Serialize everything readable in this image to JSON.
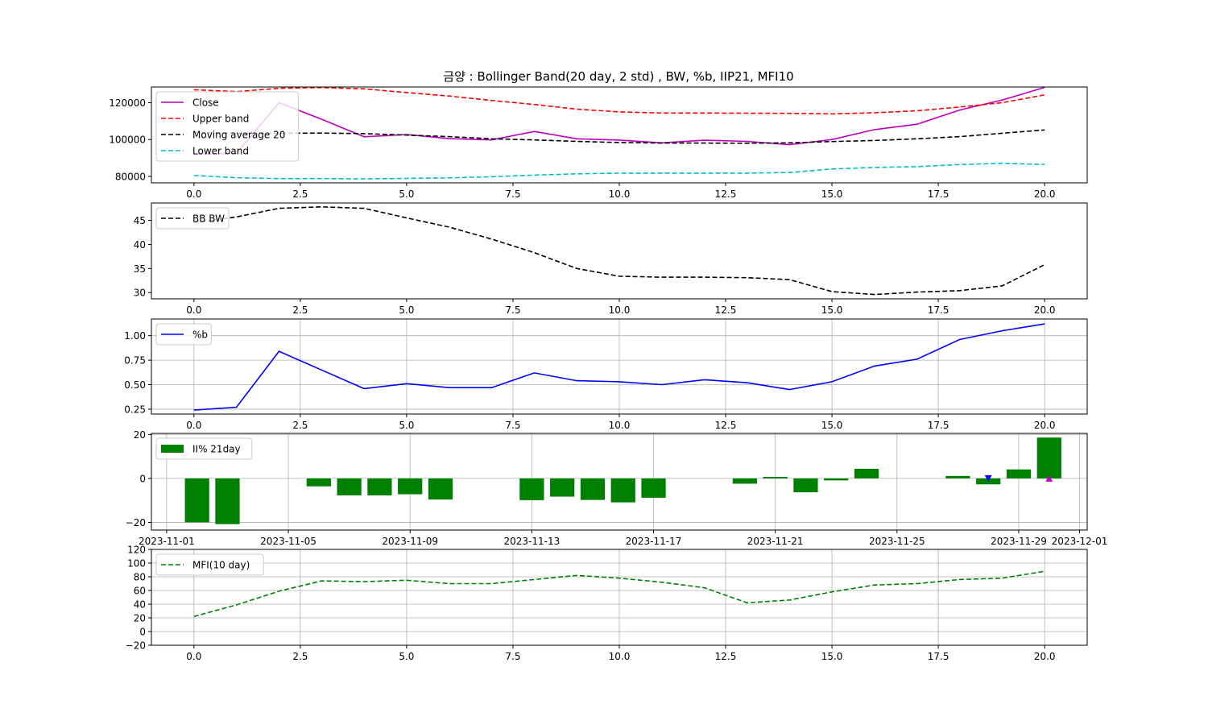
{
  "title": "금양 : Bollinger Band(20 day, 2 std) , BW, %b, IIP21, MFI10",
  "chart_data": [
    {
      "type": "line",
      "x": [
        0,
        1,
        2,
        3,
        4,
        5,
        6,
        7,
        8,
        9,
        10,
        11,
        12,
        13,
        14,
        15,
        16,
        17,
        18,
        19,
        20
      ],
      "xlim": [
        -1,
        21
      ],
      "ylim": [
        76500,
        128500
      ],
      "xticks": [
        0,
        2.5,
        5,
        7.5,
        10,
        12.5,
        15,
        17.5,
        20
      ],
      "xtick_labels": [
        "0.0",
        "2.5",
        "5.0",
        "7.5",
        "10.0",
        "12.5",
        "15.0",
        "17.5",
        "20.0"
      ],
      "yticks": [
        80000,
        100000,
        120000
      ],
      "ytick_labels": [
        "80000",
        "100000",
        "120000"
      ],
      "grid": false,
      "legend_position": "upper-left",
      "series": [
        {
          "name": "Close",
          "color": "#bf00bf",
          "dash": "solid",
          "values": [
            92000,
            92500,
            120000,
            111000,
            101500,
            102700,
            100500,
            99800,
            104400,
            100400,
            99700,
            98200,
            99600,
            99000,
            97200,
            100000,
            105400,
            108300,
            116000,
            121400,
            128300
          ]
        },
        {
          "name": "Upper band",
          "color": "#ff0000",
          "dash": "dashed",
          "values": [
            127000,
            126000,
            127800,
            128200,
            127500,
            125500,
            123600,
            121200,
            119000,
            116500,
            115000,
            114400,
            114400,
            114300,
            114200,
            113900,
            114500,
            115600,
            117600,
            120000,
            124200
          ]
        },
        {
          "name": "Moving average 20",
          "color": "#000000",
          "dash": "dashed",
          "values": [
            104000,
            103400,
            103400,
            103500,
            103200,
            102400,
            101600,
            100400,
            99800,
            99000,
            98400,
            98100,
            98100,
            98000,
            98200,
            98900,
            99500,
            100400,
            101600,
            103400,
            105200
          ]
        },
        {
          "name": "Lower band",
          "color": "#00bfbf",
          "dash": "dashed",
          "values": [
            80500,
            79300,
            78800,
            78800,
            78700,
            78900,
            79200,
            79800,
            80700,
            81400,
            81800,
            81800,
            81800,
            81800,
            82100,
            84000,
            84900,
            85300,
            86400,
            87100,
            86500
          ]
        }
      ]
    },
    {
      "type": "line",
      "x": [
        0,
        1,
        2,
        3,
        4,
        5,
        6,
        7,
        8,
        9,
        10,
        11,
        12,
        13,
        14,
        15,
        16,
        17,
        18,
        19,
        20
      ],
      "xlim": [
        -1,
        21
      ],
      "ylim": [
        28.7,
        48.6
      ],
      "xticks": [
        0,
        2.5,
        5,
        7.5,
        10,
        12.5,
        15,
        17.5,
        20
      ],
      "xtick_labels": [
        "0.0",
        "2.5",
        "5.0",
        "7.5",
        "10.0",
        "12.5",
        "15.0",
        "17.5",
        "20.0"
      ],
      "yticks": [
        30,
        35,
        40,
        45
      ],
      "ytick_labels": [
        "30",
        "35",
        "40",
        "45"
      ],
      "grid": false,
      "legend_position": "upper-left",
      "series": [
        {
          "name": "BB BW",
          "color": "#000000",
          "dash": "dashed",
          "values": [
            44.5,
            45.7,
            47.5,
            47.8,
            47.5,
            45.5,
            43.6,
            41.1,
            38.3,
            35.0,
            33.4,
            33.2,
            33.2,
            33.1,
            32.7,
            30.2,
            29.6,
            30.1,
            30.4,
            31.4,
            35.8
          ]
        }
      ]
    },
    {
      "type": "line",
      "x": [
        0,
        1,
        2,
        3,
        4,
        5,
        6,
        7,
        8,
        9,
        10,
        11,
        12,
        13,
        14,
        15,
        16,
        17,
        18,
        19,
        20
      ],
      "xlim": [
        -1,
        21
      ],
      "ylim": [
        0.2,
        1.17
      ],
      "xticks": [
        0,
        2.5,
        5,
        7.5,
        10,
        12.5,
        15,
        17.5,
        20
      ],
      "xtick_labels": [
        "0.0",
        "2.5",
        "5.0",
        "7.5",
        "10.0",
        "12.5",
        "15.0",
        "17.5",
        "20.0"
      ],
      "yticks": [
        0.25,
        0.5,
        0.75,
        1.0
      ],
      "ytick_labels": [
        "0.25",
        "0.50",
        "0.75",
        "1.00"
      ],
      "grid": true,
      "legend_position": "upper-left",
      "series": [
        {
          "name": "%b",
          "color": "#0000ff",
          "dash": "solid",
          "values": [
            0.24,
            0.27,
            0.84,
            0.65,
            0.46,
            0.51,
            0.47,
            0.47,
            0.62,
            0.54,
            0.53,
            0.5,
            0.55,
            0.52,
            0.45,
            0.53,
            0.69,
            0.76,
            0.96,
            1.05,
            1.12
          ]
        }
      ]
    },
    {
      "type": "bar",
      "xlim": [
        "2023-10-31T12:00",
        "2023-12-01T06:00"
      ],
      "ylim": [
        -23.5,
        20.5
      ],
      "xticks": [
        "2023-11-01",
        "2023-11-05",
        "2023-11-09",
        "2023-11-13",
        "2023-11-17",
        "2023-11-21",
        "2023-11-25",
        "2023-11-29",
        "2023-12-01"
      ],
      "xtick_labels": [
        "2023-11-01",
        "2023-11-05",
        "2023-11-09",
        "2023-11-13",
        "2023-11-17",
        "2023-11-21",
        "2023-11-25",
        "2023-11-29",
        "2023-12-01"
      ],
      "yticks": [
        -20,
        0,
        20
      ],
      "ytick_labels": [
        "−20",
        "0",
        "20"
      ],
      "grid": true,
      "legend_position": "upper-left",
      "bar_color": "#008000",
      "series": [
        {
          "name": "II% 21day",
          "color": "#008000"
        }
      ],
      "bars": [
        {
          "date": "2023-11-02",
          "value": -20.0
        },
        {
          "date": "2023-11-03",
          "value": -20.8
        },
        {
          "date": "2023-11-06",
          "value": -3.6
        },
        {
          "date": "2023-11-07",
          "value": -7.7
        },
        {
          "date": "2023-11-08",
          "value": -7.7
        },
        {
          "date": "2023-11-09",
          "value": -7.2
        },
        {
          "date": "2023-11-10",
          "value": -9.6
        },
        {
          "date": "2023-11-13",
          "value": -9.9
        },
        {
          "date": "2023-11-14",
          "value": -8.3
        },
        {
          "date": "2023-11-15",
          "value": -9.8
        },
        {
          "date": "2023-11-16",
          "value": -10.9
        },
        {
          "date": "2023-11-17",
          "value": -8.8
        },
        {
          "date": "2023-11-20",
          "value": -2.4
        },
        {
          "date": "2023-11-21",
          "value": 0.7
        },
        {
          "date": "2023-11-22",
          "value": -6.3
        },
        {
          "date": "2023-11-23",
          "value": -0.9
        },
        {
          "date": "2023-11-24",
          "value": 4.4
        },
        {
          "date": "2023-11-27",
          "value": 1.1
        },
        {
          "date": "2023-11-28",
          "value": -2.7
        },
        {
          "date": "2023-11-29",
          "value": 4.1
        },
        {
          "date": "2023-11-30",
          "value": 18.6
        }
      ],
      "markers": [
        {
          "date": "2023-11-28",
          "value": 0,
          "shape": "triangle-down",
          "color": "#0000ff"
        },
        {
          "date": "2023-11-30",
          "value": 0,
          "shape": "triangle-up",
          "color": "#bf00bf"
        }
      ]
    },
    {
      "type": "line",
      "x": [
        0,
        1,
        2,
        3,
        4,
        5,
        6,
        7,
        8,
        9,
        10,
        11,
        12,
        13,
        14,
        15,
        16,
        17,
        18,
        19,
        20
      ],
      "xlim": [
        -1,
        21
      ],
      "ylim": [
        -20,
        120
      ],
      "xticks": [
        0,
        2.5,
        5,
        7.5,
        10,
        12.5,
        15,
        17.5,
        20
      ],
      "xtick_labels": [
        "0.0",
        "2.5",
        "5.0",
        "7.5",
        "10.0",
        "12.5",
        "15.0",
        "17.5",
        "20.0"
      ],
      "yticks": [
        -20,
        0,
        20,
        40,
        60,
        80,
        100,
        120
      ],
      "ytick_labels": [
        "−20",
        "0",
        "20",
        "40",
        "60",
        "80",
        "100",
        "120"
      ],
      "grid": true,
      "legend_position": "upper-left",
      "series": [
        {
          "name": "MFI(10 day)",
          "color": "#008000",
          "dash": "dashed",
          "values": [
            22,
            39,
            59,
            74,
            73,
            75,
            70,
            70,
            76,
            82,
            78,
            72,
            64,
            42,
            46,
            58,
            68,
            70,
            76,
            78,
            88
          ]
        }
      ]
    }
  ]
}
